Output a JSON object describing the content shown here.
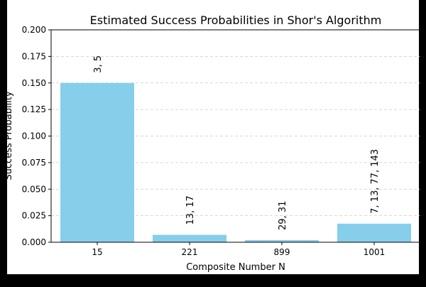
{
  "chart_data": {
    "type": "bar",
    "title": "Estimated Success Probabilities in Shor's Algorithm",
    "xlabel": "Composite Number N",
    "ylabel": "Success Probability",
    "categories": [
      "15",
      "221",
      "899",
      "1001"
    ],
    "values": [
      0.15,
      0.007,
      0.002,
      0.0175
    ],
    "bar_labels": [
      "3, 5",
      "13, 17",
      "29, 31",
      "7, 13, 77, 143"
    ],
    "ylim": [
      0,
      0.2
    ],
    "yticks": [
      "0.000",
      "0.025",
      "0.050",
      "0.075",
      "0.100",
      "0.125",
      "0.150",
      "0.175",
      "0.200"
    ],
    "grid": "horizontal dashed",
    "bar_color": "#87CEEB",
    "legend": "none"
  }
}
